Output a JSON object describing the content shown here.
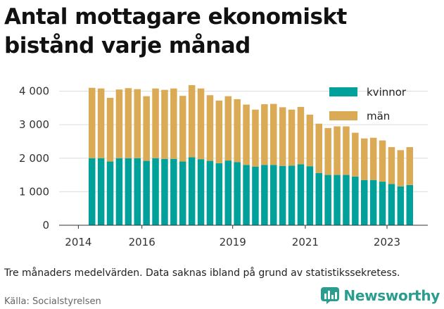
{
  "title": "Antal mottagare ekonomiskt bistånd varje månad",
  "note": "Tre månaders medelvärden. Data saknas ibland på grund av statistikssekretess.",
  "source": "Källa: Socialstyrelsen",
  "brand": {
    "name": "Newsworthy",
    "icon": "bar-chart-logo-icon",
    "color": "#2a9d8f"
  },
  "chart_data": {
    "type": "bar",
    "stacked": true,
    "title": "Antal mottagare ekonomiskt bistånd varje månad",
    "xlabel": "",
    "ylabel": "",
    "ylim": [
      0,
      4200
    ],
    "yticks": [
      0,
      1000,
      2000,
      3000,
      4000
    ],
    "ytick_labels": [
      "0",
      "1 000",
      "2 000",
      "3 000",
      "4 000"
    ],
    "xtick_labels": [
      "2014",
      "2016",
      "2019",
      "2021",
      "2023"
    ],
    "xtick_bar_index": [
      -1.5,
      5.5,
      15.5,
      23.5,
      32.5
    ],
    "grid": true,
    "legend_position": "top-right",
    "series": [
      {
        "name": "kvinnor",
        "color": "#00a19a",
        "values": [
          2000,
          2000,
          1900,
          2000,
          2000,
          2000,
          1920,
          2000,
          1980,
          1980,
          1900,
          2030,
          1970,
          1920,
          1850,
          1930,
          1880,
          1800,
          1750,
          1800,
          1800,
          1770,
          1780,
          1820,
          1760,
          1560,
          1500,
          1500,
          1500,
          1450,
          1350,
          1350,
          1300,
          1230,
          1160,
          1200
        ]
      },
      {
        "name": "män",
        "color": "#dbaa55",
        "values": [
          2100,
          2080,
          1900,
          2050,
          2090,
          2060,
          1930,
          2080,
          2060,
          2100,
          1960,
          2150,
          2110,
          1960,
          1870,
          1920,
          1880,
          1800,
          1700,
          1810,
          1820,
          1750,
          1670,
          1710,
          1540,
          1470,
          1400,
          1450,
          1450,
          1310,
          1240,
          1260,
          1230,
          1100,
          1080,
          1130
        ]
      }
    ]
  }
}
